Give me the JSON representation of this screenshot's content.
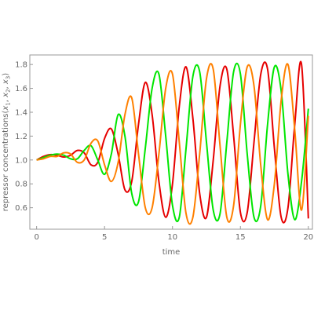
{
  "chart_data": {
    "type": "line",
    "title": "",
    "xlabel": "time",
    "ylabel_parts": [
      "repressor concentrations",
      "(",
      "x",
      "1",
      ", ",
      "x",
      "2",
      ", ",
      "x",
      "3",
      ")"
    ],
    "xlim": [
      -0.5,
      20.3
    ],
    "ylim": [
      0.42,
      1.88
    ],
    "x_ticks": [
      0,
      5,
      10,
      15,
      20
    ],
    "x_tick_labels": [
      "0",
      "5",
      "10",
      "15",
      "20"
    ],
    "y_ticks": [
      0.6,
      0.8,
      1.0,
      1.2,
      1.4,
      1.6,
      1.8
    ],
    "y_tick_labels": [
      "0.6",
      "0.8",
      "1.0",
      "1.2",
      "1.4",
      "1.6",
      "1.8"
    ],
    "grid": false,
    "frame": true,
    "series": [
      {
        "color": "#e60000",
        "x": [
          0,
          0.5,
          1,
          1.5,
          2,
          2.5,
          3,
          3.5,
          4,
          4.5,
          5,
          5.5,
          6,
          6.5,
          7,
          7.5,
          8,
          8.5,
          9,
          9.5,
          10,
          10.5,
          11,
          11.5,
          12,
          12.5,
          13,
          13.5,
          14,
          14.5,
          15,
          15.5,
          16,
          16.5,
          17,
          17.5,
          18,
          18.5,
          19,
          19.5,
          20
        ],
        "values": [
          1.0,
          1.03,
          1.045,
          1.04,
          1.025,
          1.04,
          1.08,
          1.06,
          0.96,
          0.98,
          1.18,
          1.26,
          1.05,
          0.75,
          0.82,
          1.3,
          1.65,
          1.38,
          0.82,
          0.52,
          0.8,
          1.45,
          1.78,
          1.35,
          0.72,
          0.52,
          1.0,
          1.62,
          1.76,
          1.2,
          0.56,
          0.56,
          1.15,
          1.72,
          1.76,
          1.1,
          0.52,
          0.6,
          1.3,
          1.8,
          0.51
        ]
      },
      {
        "color": "#00e600",
        "x": [
          0,
          0.5,
          1,
          1.5,
          2,
          2.5,
          3,
          3.5,
          4,
          4.5,
          5,
          5.5,
          6,
          6.5,
          7,
          7.5,
          8,
          8.5,
          9,
          9.5,
          10,
          10.5,
          11,
          11.5,
          12,
          12.5,
          13,
          13.5,
          14,
          14.5,
          15,
          15.5,
          16,
          16.5,
          17,
          17.5,
          18,
          18.5,
          19,
          19.5,
          20
        ],
        "values": [
          1.0,
          1.02,
          1.04,
          1.05,
          1.04,
          1.01,
          1.01,
          1.08,
          1.12,
          1.0,
          0.88,
          1.05,
          1.38,
          1.2,
          0.72,
          0.65,
          1.1,
          1.6,
          1.72,
          1.2,
          0.62,
          0.52,
          1.1,
          1.7,
          1.74,
          1.15,
          0.58,
          0.55,
          1.15,
          1.74,
          1.72,
          1.05,
          0.52,
          0.62,
          1.3,
          1.78,
          1.58,
          0.88,
          0.5,
          0.82,
          1.43
        ]
      },
      {
        "color": "#ff8000",
        "x": [
          0,
          0.5,
          1,
          1.5,
          2,
          2.5,
          3,
          3.5,
          4,
          4.5,
          5,
          5.5,
          6,
          6.5,
          7,
          7.5,
          8,
          8.5,
          9,
          9.5,
          10,
          10.5,
          11,
          11.5,
          12,
          12.5,
          13,
          13.5,
          14,
          14.5,
          15,
          15.5,
          16,
          16.5,
          17,
          17.5,
          18,
          18.5,
          19,
          19.5,
          20
        ],
        "values": [
          1.0,
          1.01,
          1.03,
          1.03,
          1.06,
          1.05,
          0.98,
          1.0,
          1.14,
          1.16,
          0.96,
          0.82,
          0.98,
          1.38,
          1.52,
          1.05,
          0.6,
          0.6,
          1.05,
          1.6,
          1.72,
          1.15,
          0.55,
          0.52,
          1.05,
          1.68,
          1.76,
          1.12,
          0.52,
          0.62,
          1.3,
          1.78,
          1.62,
          0.95,
          0.5,
          0.8,
          1.5,
          1.8,
          1.25,
          0.58,
          1.37
        ]
      }
    ]
  }
}
